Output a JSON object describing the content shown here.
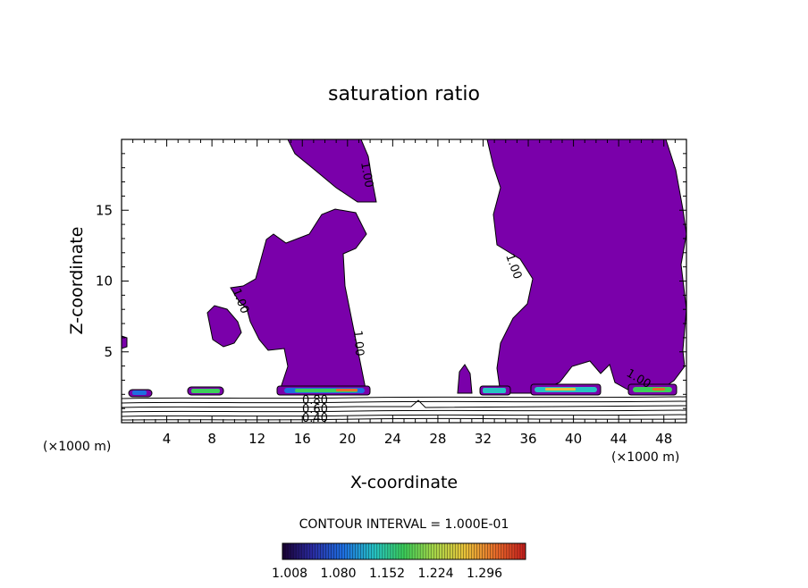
{
  "chart_data": {
    "type": "contour",
    "title": "saturation ratio",
    "xlabel": "X-coordinate",
    "ylabel": "Z-coordinate",
    "x_unit_label": "(×1000 m)",
    "x_unit_label_right": "(×1000 m)",
    "xlim": [
      0,
      50
    ],
    "ylim": [
      0,
      20
    ],
    "xticks": [
      4,
      8,
      12,
      16,
      20,
      24,
      28,
      32,
      36,
      40,
      44,
      48
    ],
    "yticks": [
      5,
      10,
      15
    ],
    "contour_interval_text": "CONTOUR INTERVAL = 1.000E-01",
    "contour_line_labels": [
      "1.00",
      "1.00",
      "1.00",
      "1.00",
      "1.00",
      "1.00",
      "0.80",
      "0.60",
      "0.40"
    ],
    "colorbar": {
      "tick_labels": [
        "1.008",
        "1.080",
        "1.152",
        "1.224",
        "1.296"
      ],
      "colors": [
        "#1a0033",
        "#2a2aa0",
        "#1e6ee0",
        "#26c3c3",
        "#3ccf5a",
        "#a6d84a",
        "#e8c23a",
        "#e86a2a",
        "#c81e1e"
      ]
    },
    "fill_color": "#7a00aa",
    "regions_description": "Supersaturated (>=1.00) regions shaded purple; contour lines 0.40–0.80 near surface"
  }
}
